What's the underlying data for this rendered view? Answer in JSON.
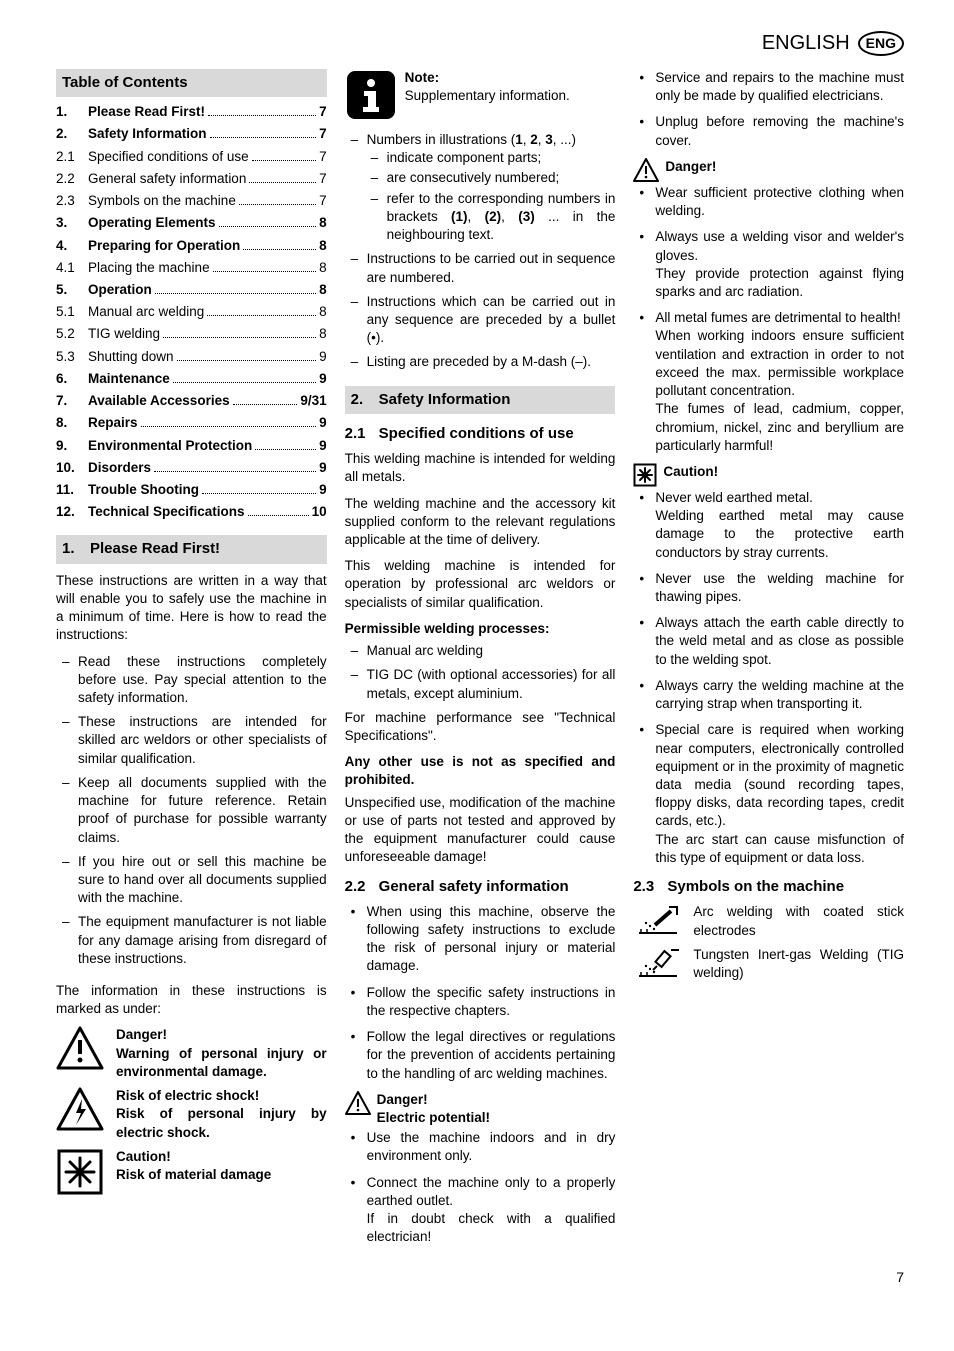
{
  "lang_text": "ENGLISH",
  "lang_abbr": "ENG",
  "page_number": "7",
  "toc_header": "Table of Contents",
  "toc": [
    {
      "num": "1.",
      "title": "Please Read First!",
      "page": "7",
      "bold": true
    },
    {
      "num": "2.",
      "title": "Safety Information",
      "page": "7",
      "bold": true
    },
    {
      "num": "2.1",
      "title": "Specified conditions of use",
      "page": "7",
      "bold": false
    },
    {
      "num": "2.2",
      "title": "General safety information",
      "page": "7",
      "bold": false
    },
    {
      "num": "2.3",
      "title": "Symbols on the machine",
      "page": "7",
      "bold": false
    },
    {
      "num": "3.",
      "title": "Operating Elements",
      "page": "8",
      "bold": true
    },
    {
      "num": "4.",
      "title": "Preparing for Operation",
      "page": "8",
      "bold": true
    },
    {
      "num": "4.1",
      "title": "Placing the machine",
      "page": "8",
      "bold": false
    },
    {
      "num": "5.",
      "title": "Operation",
      "page": "8",
      "bold": true
    },
    {
      "num": "5.1",
      "title": "Manual arc welding",
      "page": "8",
      "bold": false
    },
    {
      "num": "5.2",
      "title": "TIG welding",
      "page": "8",
      "bold": false
    },
    {
      "num": "5.3",
      "title": "Shutting down",
      "page": "9",
      "bold": false
    },
    {
      "num": "6.",
      "title": "Maintenance",
      "page": "9",
      "bold": true
    },
    {
      "num": "7.",
      "title": "Available Accessories",
      "page": "9/31",
      "bold": true
    },
    {
      "num": "8.",
      "title": "Repairs",
      "page": "9",
      "bold": true
    },
    {
      "num": "9.",
      "title": "Environmental Protection",
      "page": "9",
      "bold": true
    },
    {
      "num": "10.",
      "title": "Disorders",
      "page": "9",
      "bold": true
    },
    {
      "num": "11.",
      "title": "Trouble Shooting",
      "page": "9",
      "bold": true
    },
    {
      "num": "12.",
      "title": "Technical Specifications",
      "page": "10",
      "bold": true
    }
  ],
  "s1": {
    "num": "1.",
    "title": "Please Read First!",
    "p1": "These instructions are written in a way that will enable you to safely use the machine in a minimum of time. Here is how to read the instructions:",
    "li1": "Read these instructions completely before use. Pay special attention to the safety information.",
    "li2": "These instructions are intended for skilled arc weldors or other specialists of similar qualification.",
    "li3": "Keep all documents supplied with the machine for future reference. Retain proof of purchase for possible warranty claims.",
    "li4": "If you hire out or sell this machine be sure to hand over all documents supplied with the machine.",
    "li5": "The equipment manufacturer is not liable for any damage arising from disregard of these instructions.",
    "p2": "The information in these instructions is marked as under:",
    "danger_t": "Danger!",
    "danger_b": "Warning of personal injury or environmental damage.",
    "shock_t": "Risk of electric shock!",
    "shock_b": "Risk of personal injury by electric shock.",
    "caution_t": "Caution!",
    "caution_b": "Risk of material damage"
  },
  "col2": {
    "note_t": "Note:",
    "note_b": "Supplementary information.",
    "li1a": "Numbers in illustrations (",
    "li1b": ", ...)",
    "n1": "1",
    "n2": "2",
    "n3": "3",
    "sub1": "indicate component parts;",
    "sub2": "are consecutively numbered;",
    "sub3a": "refer to the corresponding numbers in brackets ",
    "sub3b": " ... in the neighbouring text.",
    "b1": "(1)",
    "b2": "(2)",
    "b3": "(3)",
    "li2": "Instructions to be carried out in sequence are numbered.",
    "li3": "Instructions which can be carried out in any sequence are preceded by a bullet (•).",
    "li4": "Listing are preceded by a M-dash (–)."
  },
  "s2": {
    "num": "2.",
    "title": "Safety Information"
  },
  "s21": {
    "num": "2.1",
    "title": "Specified conditions of use",
    "p1": "This welding machine is intended for welding all metals.",
    "p2": "The welding machine and the accessory kit supplied conform to the relevant regulations applicable at the time of delivery.",
    "p3": "This welding machine is intended for operation by professional arc weldors or specialists of similar qualification.",
    "perm_h": "Permissible welding processes:",
    "perm1": "Manual arc welding",
    "perm2": "TIG DC (with optional accessories) for all metals, except aluminium.",
    "p4": "For machine performance see \"Technical Specifications\".",
    "any_h": "Any other use is not as specified and prohibited.",
    "p5": "Unspecified use, modification of the machine or use of parts not tested and approved by the equipment manufacturer could cause unforeseeable damage!"
  },
  "s22": {
    "num": "2.2",
    "title": "General safety information",
    "b1": "When using this machine, observe the following safety instructions to exclude the risk of personal injury or material damage.",
    "b2": "Follow the specific safety instructions in the respective chapters.",
    "b3": "Follow the legal directives or regulations for the prevention of accidents pertaining to the handling of arc welding machines.",
    "d1_t": "Danger!",
    "d1_s": "Electric potential!",
    "d1_1": "Use the machine indoors and in dry environment only.",
    "d1_2a": "Connect the machine only to a properly earthed outlet.",
    "d1_2b": "If in doubt check with a qualified electrician!"
  },
  "col3": {
    "top1": "Service and repairs to the machine must only be made by qualified electricians.",
    "top2": "Unplug before removing the machine's cover.",
    "d2_t": "Danger!",
    "d2_1": "Wear sufficient protective clothing when welding.",
    "d2_2a": "Always use a welding visor and welder's gloves.",
    "d2_2b": "They provide protection against flying sparks and arc radiation.",
    "d2_3a": "All metal fumes are detrimental to health!",
    "d2_3b": "When working indoors ensure sufficient ventilation and extraction in order to not exceed the max. permissible workplace pollutant concentration.",
    "d2_3c": "The fumes of lead, cadmium, copper, chromium, nickel, zinc and beryllium are particularly harmful!",
    "c_t": "Caution!",
    "c1a": "Never weld earthed metal.",
    "c1b": "Welding earthed metal may cause damage to the protective earth conductors by stray currents.",
    "c2": "Never use the welding machine for thawing pipes.",
    "c3": "Always attach the earth cable directly to the weld metal and as close as possible to the welding spot.",
    "c4": "Always carry the welding machine at the carrying strap when transporting it.",
    "c5a": "Special care is required when working near computers, electronically controlled equipment or in the proximity of magnetic data media (sound recording tapes, floppy disks, data recording tapes, credit cards, etc.).",
    "c5b": "The arc start can cause misfunction of this type of equipment or data loss."
  },
  "s23": {
    "num": "2.3",
    "title": "Symbols on the machine",
    "sym1": "Arc welding with coated stick electrodes",
    "sym2": "Tungsten Inert-gas Welding (TIG welding)"
  }
}
